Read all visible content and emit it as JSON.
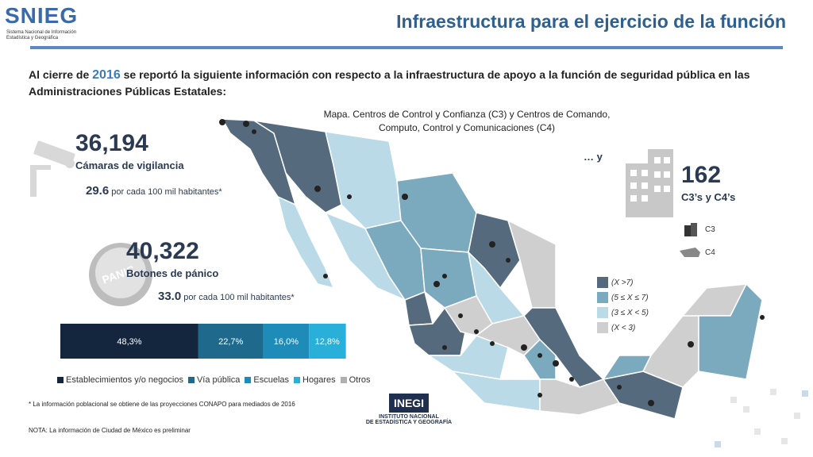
{
  "logo": {
    "name": "SNIEG",
    "subtitle": "Sistema Nacional de Información Estadística y Geográfica"
  },
  "title": "Infraestructura para el ejercicio de la función",
  "intro": {
    "before": "Al cierre de ",
    "year": "2016",
    "after": " se reportó la siguiente información con respecto a la infraestructura de apoyo a la función de seguridad pública en las Administraciones Públicas Estatales:"
  },
  "map_title": "Mapa. Centros de Control y Confianza (C3) y Centros de Comando, Computo, Control y Comunicaciones (C4)",
  "cameras": {
    "value": "36,194",
    "label": "Cámaras de vigilancia",
    "rate_value": "29.6",
    "rate_text": " por cada 100 mil habitantes*"
  },
  "panic": {
    "value": "40,322",
    "label": "Botones de pánico",
    "rate_value": "33.0",
    "rate_text": " por cada 100 mil habitantes*",
    "button_text": "PANIC"
  },
  "centers": {
    "ellipsis": "… y",
    "value": "162",
    "label": "C3’s y C4’s",
    "c3": "C3",
    "c4": "C4"
  },
  "map_legend": [
    {
      "label": "(X >7)",
      "color": "#566a7e"
    },
    {
      "label": "(5 ≤ X ≤ 7)",
      "color": "#7ba9bd"
    },
    {
      "label": "(3 ≤ X < 5)",
      "color": "#b9dae6"
    },
    {
      "label": "(X < 3)",
      "color": "#cfcfcf"
    }
  ],
  "chart_data": {
    "type": "bar",
    "orientation": "horizontal-stacked",
    "categories": [
      "Establecimientos y/o negocios",
      "Vía pública",
      "Escuelas",
      "Hogares",
      "Otros"
    ],
    "values": [
      48.3,
      22.7,
      16.0,
      12.8,
      0.2
    ],
    "labels": [
      "48,3%",
      "22,7%",
      "16,0%",
      "12,8%",
      ""
    ],
    "colors": [
      "#14263d",
      "#1f6a8c",
      "#1f8bb8",
      "#2ab0d8",
      "#b0b0b0"
    ],
    "legend_position": "bottom"
  },
  "notes": {
    "population": "* La información poblacional se obtiene de las proyecciones CONAPO para mediados de 2016",
    "cdmx": "NOTA: La información de Ciudad de México es preliminar"
  },
  "inegi": {
    "name": "INEGI",
    "line1": "INSTITUTO NACIONAL",
    "line2": "DE ESTADÍSTICA Y GEOGRAFÍA"
  }
}
